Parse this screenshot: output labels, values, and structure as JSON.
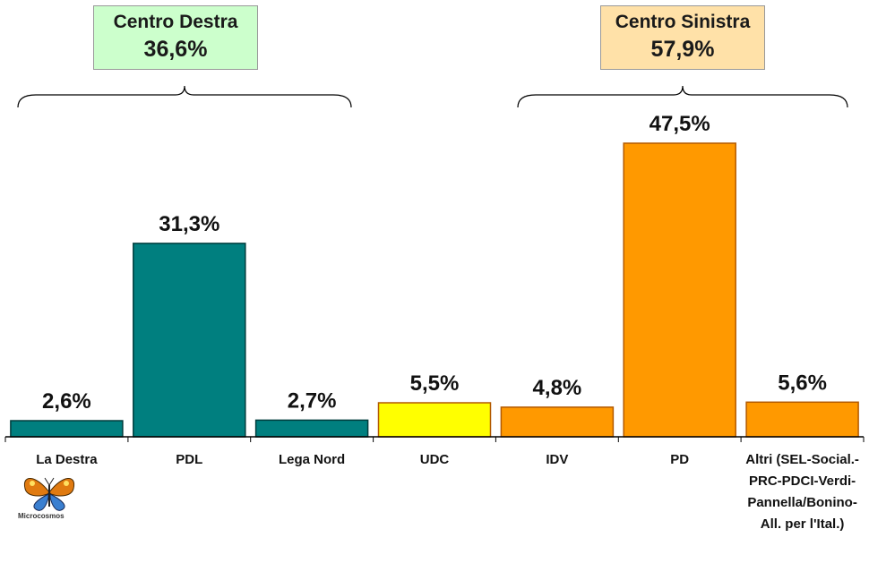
{
  "groups": {
    "centro_destra": {
      "name": "Centro Destra",
      "percent": "36,6%"
    },
    "centro_sinistra": {
      "name": "Centro Sinistra",
      "percent": "57,9%"
    }
  },
  "logo": {
    "text": "Microcosmos"
  },
  "colors": {
    "teal": "#007f7f",
    "yellow": "#ffff00",
    "orange": "#ff9900"
  },
  "chart_data": {
    "type": "bar",
    "categories": [
      "La Destra",
      "PDL",
      "Lega Nord",
      "UDC",
      "IDV",
      "PD",
      "Altri (SEL-Social.-PRC-PDCI-Verdi-Pannella/Bonino-All. per l'Ital.)"
    ],
    "category_lines": [
      [
        "La Destra"
      ],
      [
        "PDL"
      ],
      [
        "Lega Nord"
      ],
      [
        "UDC"
      ],
      [
        "IDV"
      ],
      [
        "PD"
      ],
      [
        "Altri (SEL-Social.-",
        "PRC-PDCI-Verdi-",
        "Pannella/Bonino-",
        "All. per l'Ital.)"
      ]
    ],
    "values": [
      2.6,
      31.3,
      2.7,
      5.5,
      4.8,
      47.5,
      5.6
    ],
    "value_labels": [
      "2,6%",
      "31,3%",
      "2,7%",
      "5,5%",
      "4,8%",
      "47,5%",
      "5,6%"
    ],
    "bar_colors": [
      "#007f7f",
      "#007f7f",
      "#007f7f",
      "#ffff00",
      "#ff9900",
      "#ff9900",
      "#ff9900"
    ],
    "ylim": [
      0,
      50
    ]
  }
}
